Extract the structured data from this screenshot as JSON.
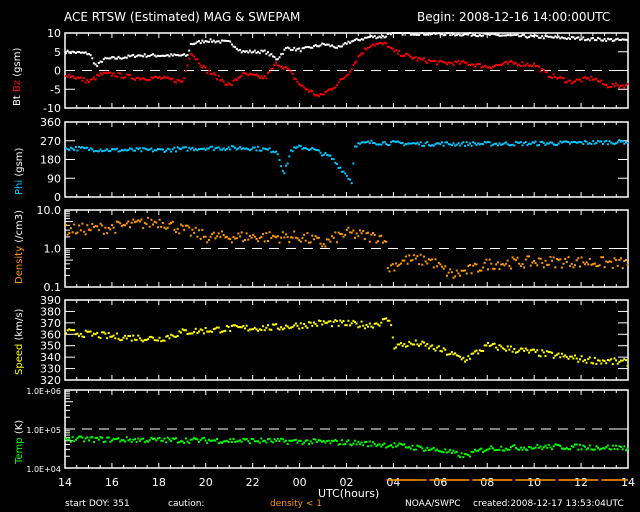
{
  "title": "ACE RTSW (Estimated) MAG & SWEPAM",
  "begin": "Begin: 2008-12-16 14:00:00UTC",
  "footer": {
    "start_doy": "start DOY: 351",
    "caution": "caution:",
    "density_note": "density < 1",
    "source": "NOAA/SWPC",
    "created": "created:2008-12-17 13:53:04UTC"
  },
  "colors": {
    "bt": "#ffffff",
    "bz": "#ff0000",
    "phi": "#00c8ff",
    "density": "#ff9900",
    "speed": "#ffff00",
    "temp": "#00ff00"
  },
  "chart_data": {
    "type": "scatter",
    "xlabel": "UTC(hours)",
    "xlim": [
      14,
      38
    ],
    "x_ticks": [
      "14",
      "16",
      "18",
      "20",
      "22",
      "00",
      "02",
      "04",
      "06",
      "08",
      "10",
      "12",
      "14"
    ],
    "panels": [
      {
        "id": "mag",
        "ylabel_parts": [
          "Bt",
          "Bz",
          "(gsm)"
        ],
        "ylim": [
          -10,
          10
        ],
        "scale": "linear",
        "y_ticks": [
          "10",
          "5",
          "0",
          "-5",
          "-10"
        ],
        "y_tick_values": [
          10,
          5,
          0,
          -5,
          -10
        ],
        "dashed": 0,
        "series": [
          {
            "name": "Bt",
            "color": "#ffffff",
            "noise": 0.4,
            "points": [
              [
                14,
                5
              ],
              [
                15,
                4.5
              ],
              [
                15.3,
                1
              ],
              [
                15.6,
                3
              ],
              [
                16.5,
                3.5
              ],
              [
                17,
                4
              ],
              [
                19.2,
                4
              ],
              [
                19.3,
                7
              ],
              [
                20,
                8
              ],
              [
                21,
                7.5
              ],
              [
                21.5,
                5
              ],
              [
                22.5,
                5
              ],
              [
                23,
                3
              ],
              [
                23.4,
                6
              ],
              [
                24,
                5.5
              ],
              [
                25,
                7
              ],
              [
                25.7,
                6
              ],
              [
                26,
                7.5
              ],
              [
                27,
                9
              ],
              [
                27.6,
                9
              ],
              [
                27.8,
                10
              ],
              [
                32,
                9.5
              ],
              [
                36,
                8.5
              ],
              [
                38,
                8
              ]
            ]
          },
          {
            "name": "Bz",
            "color": "#ff0000",
            "noise": 0.6,
            "points": [
              [
                14,
                -1
              ],
              [
                15,
                -3
              ],
              [
                15.5,
                -1
              ],
              [
                16,
                -1
              ],
              [
                17,
                -2
              ],
              [
                18,
                -2
              ],
              [
                19,
                -3
              ],
              [
                19.3,
                5
              ],
              [
                20,
                0
              ],
              [
                21,
                -4
              ],
              [
                21.5,
                -1
              ],
              [
                22.5,
                -2
              ],
              [
                23,
                2
              ],
              [
                23.5,
                0
              ],
              [
                24,
                -4
              ],
              [
                24.8,
                -7
              ],
              [
                25.5,
                -4
              ],
              [
                26,
                -1
              ],
              [
                26.5,
                4
              ],
              [
                27,
                7
              ],
              [
                27.7,
                7
              ],
              [
                27.8,
                6
              ],
              [
                28,
                5
              ],
              [
                29,
                3
              ],
              [
                30,
                2
              ],
              [
                31,
                2
              ],
              [
                32,
                1
              ],
              [
                33,
                2
              ],
              [
                34,
                1.5
              ],
              [
                34.5,
                -1
              ],
              [
                35.5,
                -3
              ],
              [
                36,
                -2.5
              ],
              [
                36.5,
                -2
              ],
              [
                37,
                -4
              ],
              [
                38,
                -4
              ]
            ]
          }
        ]
      },
      {
        "id": "phi",
        "ylabel_parts": [
          "Phi",
          "(gsm)"
        ],
        "ylim": [
          0,
          360
        ],
        "scale": "linear",
        "y_ticks": [
          "360",
          "270",
          "180",
          "90",
          "0"
        ],
        "y_tick_values": [
          360,
          270,
          180,
          90,
          0
        ],
        "series": [
          {
            "name": "Phi",
            "color": "#00c8ff",
            "noise": 10,
            "points": [
              [
                14,
                235
              ],
              [
                16,
                225
              ],
              [
                18,
                225
              ],
              [
                20,
                235
              ],
              [
                22,
                235
              ],
              [
                23,
                220
              ],
              [
                23.3,
                110
              ],
              [
                23.6,
                225
              ],
              [
                24,
                240
              ],
              [
                24.5,
                230
              ],
              [
                25.3,
                190
              ],
              [
                26,
                100
              ],
              [
                26.2,
                70
              ],
              [
                26.3,
                250
              ],
              [
                27,
                262
              ],
              [
                29,
                255
              ],
              [
                32,
                255
              ],
              [
                35,
                258
              ],
              [
                38,
                265
              ]
            ]
          }
        ]
      },
      {
        "id": "density",
        "ylabel_parts": [
          "Density",
          "(/cm3)"
        ],
        "ylim": [
          0.1,
          10
        ],
        "scale": "log",
        "y_ticks": [
          "10.0",
          "1.0",
          "0.1"
        ],
        "y_tick_values": [
          10,
          1,
          0.1
        ],
        "dashed": 1,
        "series": [
          {
            "name": "Density",
            "color": "#ff9900",
            "noise": 0.15,
            "points": [
              [
                14,
                3
              ],
              [
                16,
                3.5
              ],
              [
                18,
                5
              ],
              [
                19,
                3
              ],
              [
                20,
                2
              ],
              [
                22,
                2
              ],
              [
                24,
                2
              ],
              [
                25,
                1.3
              ],
              [
                26,
                2.5
              ],
              [
                27,
                2
              ],
              [
                27.6,
                2
              ],
              [
                27.7,
                0.3
              ],
              [
                28.5,
                0.5
              ],
              [
                29.5,
                0.5
              ],
              [
                30,
                0.3
              ],
              [
                30.5,
                0.2
              ],
              [
                31.5,
                0.3
              ],
              [
                32,
                0.4
              ],
              [
                34,
                0.45
              ],
              [
                36,
                0.45
              ],
              [
                38,
                0.4
              ]
            ]
          }
        ]
      },
      {
        "id": "speed",
        "ylabel_parts": [
          "Speed",
          "(km/s)"
        ],
        "ylim": [
          320,
          390
        ],
        "scale": "linear",
        "y_ticks": [
          "390",
          "380",
          "370",
          "360",
          "350",
          "340",
          "330",
          "320"
        ],
        "y_tick_values": [
          390,
          380,
          370,
          360,
          350,
          340,
          330,
          320
        ],
        "series": [
          {
            "name": "Speed",
            "color": "#ffff00",
            "noise": 3,
            "points": [
              [
                14,
                362
              ],
              [
                16,
                358
              ],
              [
                18,
                356
              ],
              [
                19,
                362
              ],
              [
                21,
                365
              ],
              [
                23,
                366
              ],
              [
                25,
                370
              ],
              [
                27,
                368
              ],
              [
                27.8,
                373
              ],
              [
                28,
                350
              ],
              [
                29,
                352
              ],
              [
                30,
                346
              ],
              [
                31,
                338
              ],
              [
                32,
                350
              ],
              [
                34,
                344
              ],
              [
                36,
                338
              ],
              [
                38,
                335
              ]
            ]
          }
        ]
      },
      {
        "id": "temp",
        "ylabel_parts": [
          "Temp",
          "(K)"
        ],
        "ylim": [
          10000,
          1000000
        ],
        "scale": "log",
        "y_ticks": [
          "1.0E+06",
          "1.0E+05",
          "1.0E+04"
        ],
        "y_tick_values": [
          1000000,
          100000,
          10000
        ],
        "dashed": 100000,
        "series": [
          {
            "name": "Temp",
            "color": "#00ff00",
            "noise": 0.07,
            "points": [
              [
                14,
                55000
              ],
              [
                18,
                52000
              ],
              [
                22,
                50000
              ],
              [
                26,
                45000
              ],
              [
                28,
                38000
              ],
              [
                30,
                28000
              ],
              [
                31,
                20000
              ],
              [
                32,
                32000
              ],
              [
                35,
                35000
              ],
              [
                38,
                33000
              ]
            ]
          }
        ]
      }
    ]
  }
}
